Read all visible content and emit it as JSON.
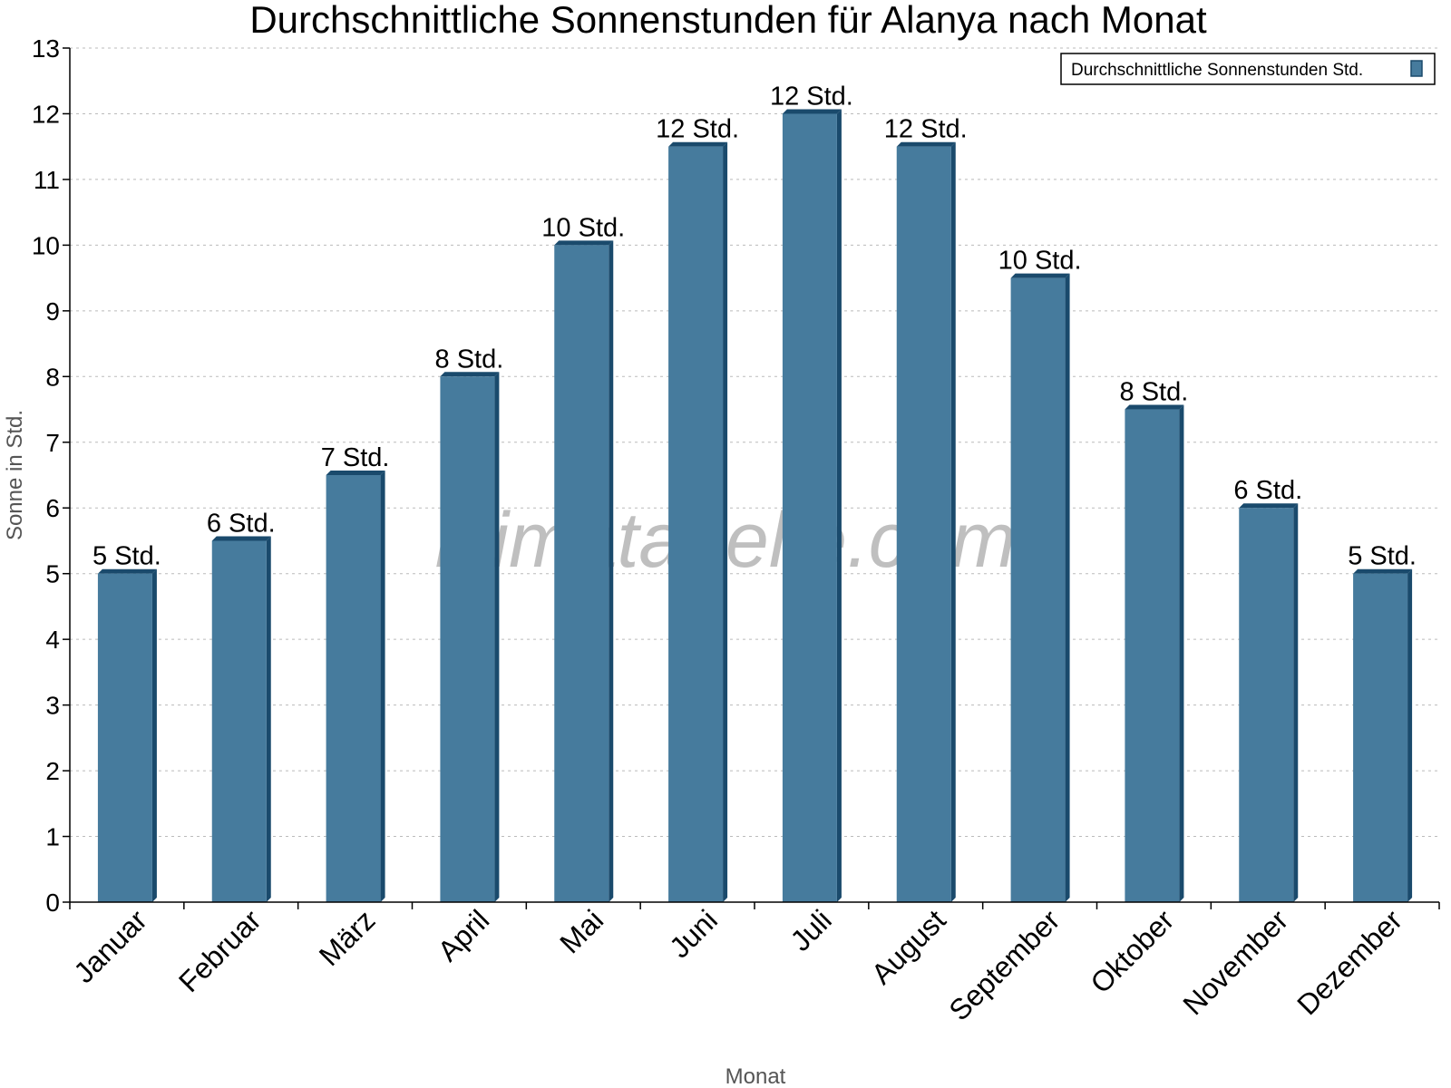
{
  "chart_data": {
    "type": "bar",
    "title": "Durchschnittliche Sonnenstunden für Alanya nach Monat",
    "xlabel": "Monat",
    "ylabel": "Sonne in Std.",
    "ylim": [
      0,
      13
    ],
    "yticks": [
      0,
      1,
      2,
      3,
      4,
      5,
      6,
      7,
      8,
      9,
      10,
      11,
      12,
      13
    ],
    "grid": true,
    "legend_placement": "top-right",
    "categories": [
      "Januar",
      "Februar",
      "März",
      "April",
      "Mai",
      "Juni",
      "Juli",
      "August",
      "September",
      "Oktober",
      "November",
      "Dezember"
    ],
    "series": [
      {
        "name": "Durchschnittliche Sonnenstunden Std.",
        "values": [
          5,
          5.5,
          6.5,
          8,
          10,
          11.5,
          12,
          11.5,
          9.5,
          7.5,
          6,
          5
        ],
        "data_labels": [
          "5 Std.",
          "6 Std.",
          "7 Std.",
          "8 Std.",
          "10 Std.",
          "12 Std.",
          "12 Std.",
          "12 Std.",
          "10 Std.",
          "8 Std.",
          "6 Std.",
          "5 Std."
        ],
        "color": "#467b9d",
        "side_color": "#1a4a6c"
      }
    ],
    "watermark": "klimatabelle.com"
  }
}
